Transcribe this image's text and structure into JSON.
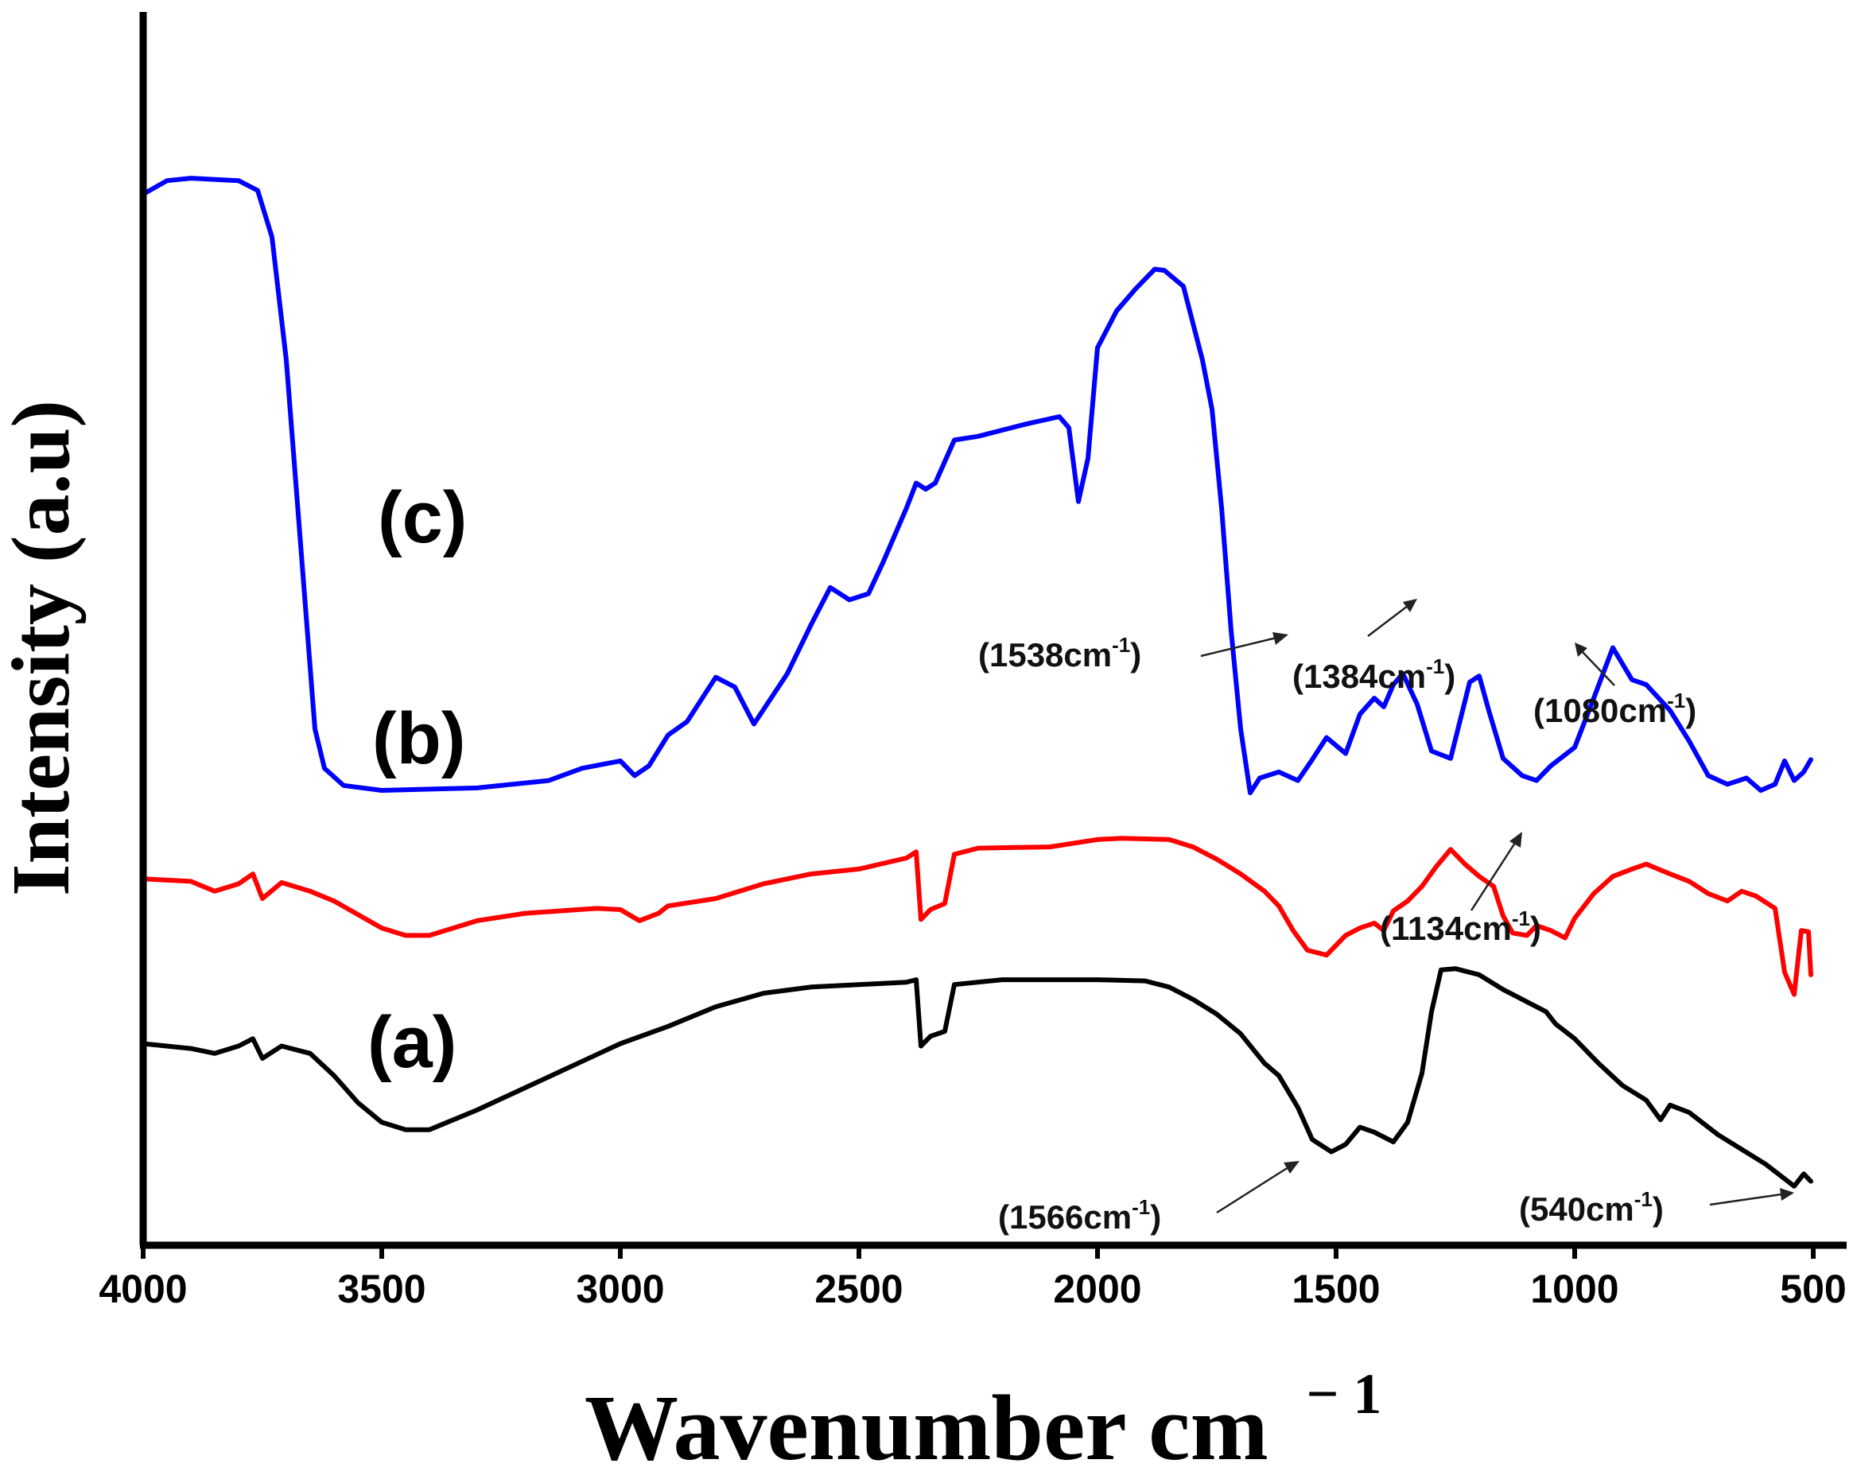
{
  "chart_data": {
    "type": "line",
    "title": "",
    "xlabel": "Wavenumber cm",
    "xlabel_sup": "− 1",
    "ylabel": "Intensity (a.u)",
    "xlim": [
      4000,
      500
    ],
    "ylim": [
      0,
      100
    ],
    "x_ticks": [
      "4000",
      "3500",
      "3000",
      "2500",
      "2000",
      "1500",
      "1000",
      "500"
    ],
    "grid": false,
    "series": [
      {
        "name": "(c)",
        "color": "#0000ff",
        "points": [
          [
            4000,
            85.5
          ],
          [
            3950,
            86.6
          ],
          [
            3900,
            86.8
          ],
          [
            3800,
            86.6
          ],
          [
            3760,
            85.8
          ],
          [
            3730,
            82
          ],
          [
            3700,
            72
          ],
          [
            3680,
            62
          ],
          [
            3660,
            52
          ],
          [
            3640,
            42
          ],
          [
            3620,
            38.8
          ],
          [
            3580,
            37.4
          ],
          [
            3500,
            37
          ],
          [
            3300,
            37.2
          ],
          [
            3150,
            37.8
          ],
          [
            3080,
            38.8
          ],
          [
            3000,
            39.4
          ],
          [
            2970,
            38.2
          ],
          [
            2940,
            39
          ],
          [
            2900,
            41.5
          ],
          [
            2860,
            42.6
          ],
          [
            2800,
            46.2
          ],
          [
            2760,
            45.4
          ],
          [
            2720,
            42.4
          ],
          [
            2650,
            46.5
          ],
          [
            2600,
            50.5
          ],
          [
            2560,
            53.5
          ],
          [
            2520,
            52.5
          ],
          [
            2480,
            53
          ],
          [
            2450,
            55.5
          ],
          [
            2400,
            60
          ],
          [
            2380,
            62
          ],
          [
            2360,
            61.5
          ],
          [
            2340,
            62
          ],
          [
            2300,
            65.5
          ],
          [
            2250,
            65.8
          ],
          [
            2150,
            66.8
          ],
          [
            2080,
            67.4
          ],
          [
            2060,
            66.5
          ],
          [
            2040,
            60.5
          ],
          [
            2020,
            64
          ],
          [
            2000,
            73
          ],
          [
            1960,
            76
          ],
          [
            1920,
            77.8
          ],
          [
            1880,
            79.4
          ],
          [
            1860,
            79.3
          ],
          [
            1820,
            78
          ],
          [
            1800,
            75
          ],
          [
            1780,
            72
          ],
          [
            1760,
            68
          ],
          [
            1740,
            60
          ],
          [
            1720,
            50
          ],
          [
            1700,
            42
          ],
          [
            1680,
            36.8
          ],
          [
            1660,
            38
          ],
          [
            1620,
            38.5
          ],
          [
            1580,
            37.8
          ],
          [
            1550,
            39.5
          ],
          [
            1520,
            41.3
          ],
          [
            1480,
            40
          ],
          [
            1450,
            43.2
          ],
          [
            1420,
            44.5
          ],
          [
            1400,
            43.8
          ],
          [
            1380,
            45.6
          ],
          [
            1360,
            46.5
          ],
          [
            1330,
            44
          ],
          [
            1300,
            40.2
          ],
          [
            1260,
            39.6
          ],
          [
            1220,
            45.8
          ],
          [
            1200,
            46.3
          ],
          [
            1180,
            43.5
          ],
          [
            1150,
            39.6
          ],
          [
            1110,
            38.2
          ],
          [
            1080,
            37.8
          ],
          [
            1050,
            39
          ],
          [
            1000,
            40.5
          ],
          [
            960,
            44.5
          ],
          [
            920,
            48.6
          ],
          [
            880,
            46
          ],
          [
            850,
            45.6
          ],
          [
            800,
            43.5
          ],
          [
            760,
            41
          ],
          [
            720,
            38.2
          ],
          [
            680,
            37.5
          ],
          [
            640,
            38
          ],
          [
            610,
            37
          ],
          [
            580,
            37.5
          ],
          [
            560,
            39.4
          ],
          [
            540,
            37.8
          ],
          [
            520,
            38.5
          ],
          [
            505,
            39.5
          ]
        ]
      },
      {
        "name": "(b)",
        "color": "#ff0000",
        "points": [
          [
            4000,
            29.8
          ],
          [
            3900,
            29.6
          ],
          [
            3850,
            28.8
          ],
          [
            3800,
            29.4
          ],
          [
            3770,
            30.2
          ],
          [
            3750,
            28.2
          ],
          [
            3710,
            29.5
          ],
          [
            3650,
            28.8
          ],
          [
            3600,
            28
          ],
          [
            3500,
            25.8
          ],
          [
            3450,
            25.2
          ],
          [
            3400,
            25.2
          ],
          [
            3300,
            26.4
          ],
          [
            3200,
            27
          ],
          [
            3050,
            27.4
          ],
          [
            3000,
            27.3
          ],
          [
            2960,
            26.4
          ],
          [
            2920,
            27
          ],
          [
            2900,
            27.6
          ],
          [
            2800,
            28.2
          ],
          [
            2700,
            29.4
          ],
          [
            2600,
            30.2
          ],
          [
            2500,
            30.6
          ],
          [
            2400,
            31.5
          ],
          [
            2380,
            32
          ],
          [
            2370,
            26.5
          ],
          [
            2350,
            27.3
          ],
          [
            2320,
            27.8
          ],
          [
            2300,
            31.8
          ],
          [
            2250,
            32.3
          ],
          [
            2100,
            32.4
          ],
          [
            2000,
            33
          ],
          [
            1950,
            33.1
          ],
          [
            1850,
            33
          ],
          [
            1800,
            32.4
          ],
          [
            1750,
            31.4
          ],
          [
            1700,
            30.2
          ],
          [
            1650,
            28.8
          ],
          [
            1620,
            27.6
          ],
          [
            1590,
            25.6
          ],
          [
            1560,
            24
          ],
          [
            1520,
            23.6
          ],
          [
            1480,
            25.2
          ],
          [
            1450,
            25.8
          ],
          [
            1420,
            26.2
          ],
          [
            1400,
            25.6
          ],
          [
            1380,
            27.2
          ],
          [
            1350,
            28
          ],
          [
            1320,
            29.2
          ],
          [
            1290,
            30.8
          ],
          [
            1260,
            32.2
          ],
          [
            1230,
            31
          ],
          [
            1200,
            30
          ],
          [
            1170,
            29.2
          ],
          [
            1150,
            26.8
          ],
          [
            1130,
            25.4
          ],
          [
            1100,
            25.2
          ],
          [
            1080,
            26
          ],
          [
            1050,
            25.6
          ],
          [
            1020,
            25
          ],
          [
            1000,
            26.6
          ],
          [
            960,
            28.6
          ],
          [
            920,
            30
          ],
          [
            880,
            30.6
          ],
          [
            850,
            31
          ],
          [
            800,
            30.2
          ],
          [
            760,
            29.6
          ],
          [
            720,
            28.6
          ],
          [
            680,
            28
          ],
          [
            650,
            28.8
          ],
          [
            620,
            28.4
          ],
          [
            580,
            27.4
          ],
          [
            560,
            22.2
          ],
          [
            540,
            20.4
          ],
          [
            525,
            25.6
          ],
          [
            510,
            25.5
          ],
          [
            505,
            22
          ]
        ]
      },
      {
        "name": "(a)",
        "color": "#000000",
        "points": [
          [
            4000,
            16.4
          ],
          [
            3900,
            16
          ],
          [
            3850,
            15.6
          ],
          [
            3800,
            16.2
          ],
          [
            3770,
            16.8
          ],
          [
            3750,
            15.2
          ],
          [
            3710,
            16.2
          ],
          [
            3650,
            15.6
          ],
          [
            3600,
            13.8
          ],
          [
            3550,
            11.6
          ],
          [
            3500,
            10
          ],
          [
            3450,
            9.4
          ],
          [
            3400,
            9.4
          ],
          [
            3300,
            11
          ],
          [
            3200,
            12.8
          ],
          [
            3100,
            14.6
          ],
          [
            3000,
            16.4
          ],
          [
            2900,
            17.8
          ],
          [
            2800,
            19.4
          ],
          [
            2700,
            20.5
          ],
          [
            2600,
            21
          ],
          [
            2500,
            21.2
          ],
          [
            2400,
            21.4
          ],
          [
            2380,
            21.6
          ],
          [
            2370,
            16.2
          ],
          [
            2350,
            17
          ],
          [
            2320,
            17.4
          ],
          [
            2300,
            21.2
          ],
          [
            2200,
            21.6
          ],
          [
            2000,
            21.6
          ],
          [
            1900,
            21.5
          ],
          [
            1850,
            21
          ],
          [
            1800,
            20
          ],
          [
            1750,
            18.8
          ],
          [
            1700,
            17.2
          ],
          [
            1650,
            14.8
          ],
          [
            1620,
            13.8
          ],
          [
            1580,
            11.2
          ],
          [
            1550,
            8.6
          ],
          [
            1510,
            7.6
          ],
          [
            1480,
            8.2
          ],
          [
            1450,
            9.6
          ],
          [
            1420,
            9.2
          ],
          [
            1380,
            8.4
          ],
          [
            1350,
            10
          ],
          [
            1320,
            14
          ],
          [
            1300,
            19
          ],
          [
            1280,
            22.4
          ],
          [
            1250,
            22.5
          ],
          [
            1200,
            22
          ],
          [
            1150,
            20.8
          ],
          [
            1100,
            19.8
          ],
          [
            1060,
            19
          ],
          [
            1040,
            18
          ],
          [
            1000,
            16.8
          ],
          [
            950,
            14.8
          ],
          [
            900,
            13
          ],
          [
            850,
            11.8
          ],
          [
            820,
            10.2
          ],
          [
            800,
            11.4
          ],
          [
            760,
            10.8
          ],
          [
            700,
            9
          ],
          [
            650,
            7.8
          ],
          [
            600,
            6.6
          ],
          [
            560,
            5.4
          ],
          [
            540,
            4.8
          ],
          [
            520,
            5.8
          ],
          [
            505,
            5.2
          ]
        ]
      }
    ],
    "series_labels": [
      "(c)",
      "(b)",
      "(a)"
    ],
    "annotations": [
      {
        "label": "(1538cm",
        "sup": "-1",
        "close": ")"
      },
      {
        "label": "(1384cm",
        "sup": "-1",
        "close": ")"
      },
      {
        "label": "(1080cm",
        "sup": "-1",
        "close": ")"
      },
      {
        "label": "(1134cm",
        "sup": "-1",
        "close": ")"
      },
      {
        "label": "(1566cm",
        "sup": "-1",
        "close": ")"
      },
      {
        "label": "(540cm",
        "sup": "-1",
        "close": ")"
      }
    ]
  }
}
